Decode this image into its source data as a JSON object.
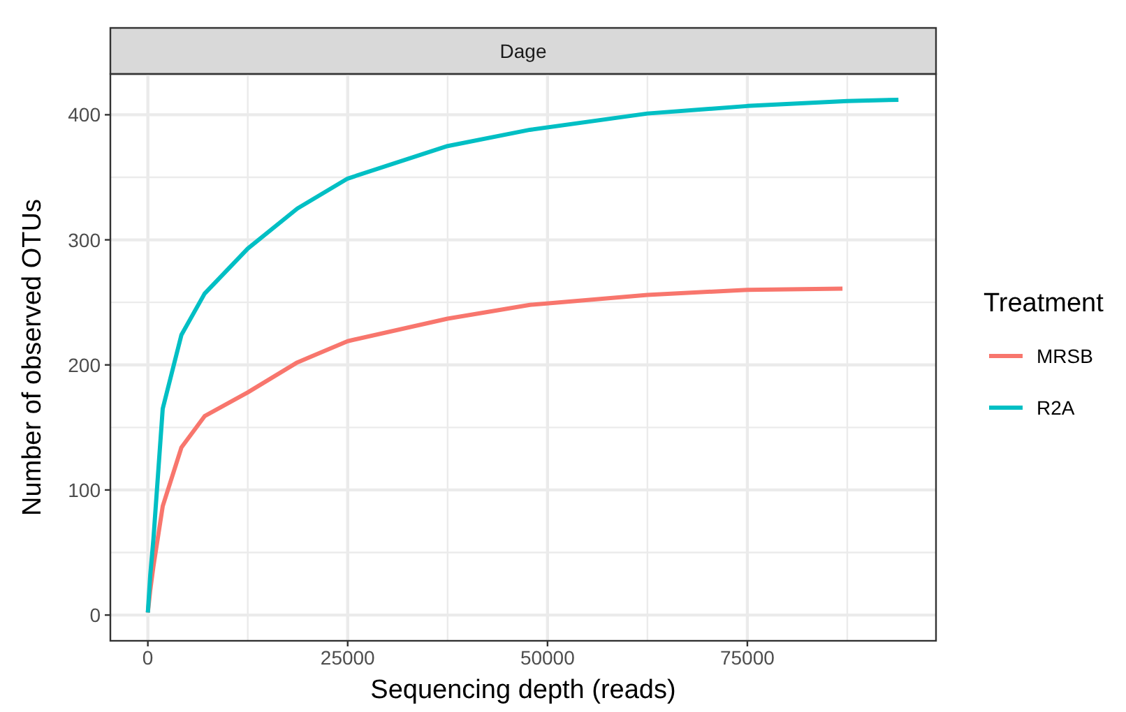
{
  "chart_data": {
    "type": "line",
    "title": "Dage",
    "xlabel": "Sequencing depth (reads)",
    "ylabel": "Number of observed OTUs",
    "legend_title": "Treatment",
    "xlim": [
      -4690,
      98600
    ],
    "ylim": [
      -20.6,
      432.6
    ],
    "xticks": [
      0,
      25000,
      50000,
      75000
    ],
    "yticks": [
      0,
      100,
      200,
      300,
      400
    ],
    "grid": true,
    "legend": "right",
    "marker": "none",
    "line_style": "solid",
    "series": [
      {
        "name": "MRSB",
        "color": "#f8766d",
        "x": [
          0,
          300,
          700,
          1860,
          4200,
          7100,
          12500,
          18700,
          25000,
          37500,
          47800,
          62500,
          75000,
          86900
        ],
        "values": [
          2,
          20,
          39,
          87,
          134,
          159,
          178,
          202,
          219,
          237,
          248,
          256,
          260,
          261
        ]
      },
      {
        "name": "R2A",
        "color": "#00bfc4",
        "x": [
          0,
          300,
          700,
          1860,
          4200,
          7100,
          12500,
          18700,
          25000,
          37500,
          47800,
          62500,
          75000,
          87500,
          93900
        ],
        "values": [
          2,
          32,
          61,
          165,
          224,
          257,
          293,
          325,
          349,
          375,
          388,
          401,
          407,
          411,
          412
        ]
      }
    ]
  }
}
